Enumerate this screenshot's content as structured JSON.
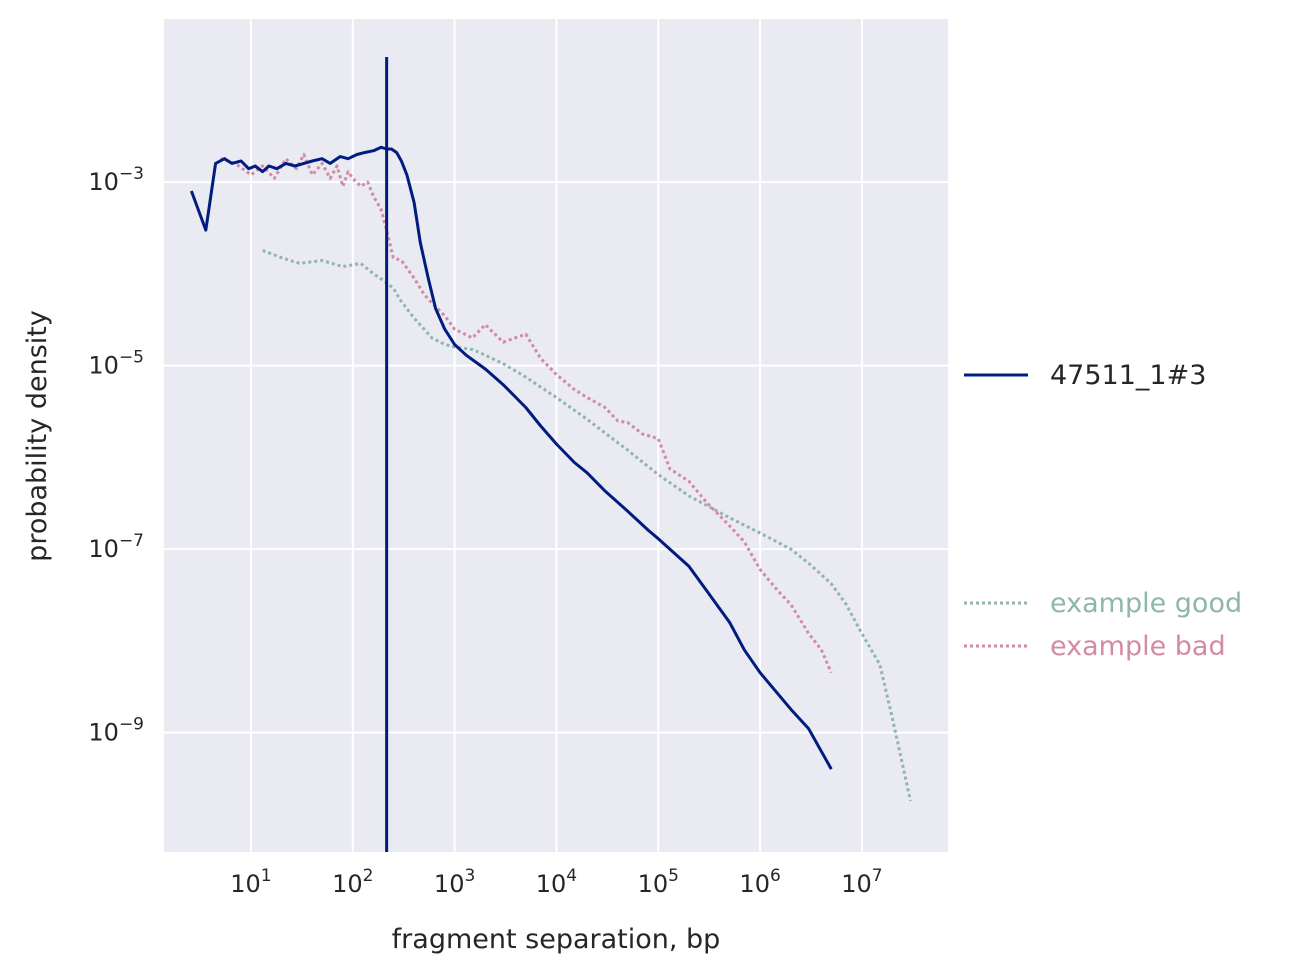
{
  "chart_data": {
    "type": "line",
    "title": "",
    "xlabel": "fragment separation, bp",
    "ylabel": "probability density",
    "x_scale": "log",
    "y_scale": "log",
    "xlim": [
      1.4,
      70000000
    ],
    "ylim": [
      5e-11,
      0.06
    ],
    "x_ticks": [
      {
        "value": 10,
        "base": "10",
        "exp": "1"
      },
      {
        "value": 100,
        "base": "10",
        "exp": "2"
      },
      {
        "value": 1000,
        "base": "10",
        "exp": "3"
      },
      {
        "value": 10000,
        "base": "10",
        "exp": "4"
      },
      {
        "value": 100000,
        "base": "10",
        "exp": "5"
      },
      {
        "value": 1000000,
        "base": "10",
        "exp": "6"
      },
      {
        "value": 10000000,
        "base": "10",
        "exp": "7"
      }
    ],
    "y_ticks": [
      {
        "value": 0.001,
        "base": "10",
        "exp": "−3"
      },
      {
        "value": 1e-05,
        "base": "10",
        "exp": "−5"
      },
      {
        "value": 1e-07,
        "base": "10",
        "exp": "−7"
      },
      {
        "value": 1e-09,
        "base": "10",
        "exp": "−9"
      }
    ],
    "grid": true,
    "legend_position": "right",
    "colors": {
      "background": "#eaeaf2",
      "grid": "#ffffff",
      "sample": "#001c7f",
      "good": "#8fb6ae",
      "bad": "#d38aa6",
      "text": "#262626"
    },
    "vertical_line": {
      "x": 215,
      "color": "#001c7f"
    },
    "legend": [
      {
        "name": "47511_1#3",
        "style": "solid",
        "color": "#001c7f"
      },
      {
        "name": "example good",
        "style": "dotted",
        "color": "#8fb6ae"
      },
      {
        "name": "example bad",
        "style": "dotted",
        "color": "#d38aa6"
      }
    ],
    "series": [
      {
        "name": "47511_1#3",
        "style": "solid",
        "color": "#001c7f",
        "x": [
          2.6,
          3.6,
          4.5,
          5.5,
          6.5,
          8,
          9.5,
          11,
          13,
          15,
          18,
          22,
          27,
          33,
          40,
          50,
          60,
          75,
          90,
          110,
          130,
          160,
          190,
          215,
          240,
          270,
          300,
          340,
          400,
          460,
          550,
          650,
          800,
          1000,
          1300,
          2000,
          3000,
          5000,
          7000,
          10000,
          15000,
          20000,
          30000,
          50000,
          80000,
          100000,
          200000,
          300000,
          500000,
          700000,
          1000000,
          2000000,
          3000000,
          5000000
        ],
        "y": [
          0.0008,
          0.0003,
          0.0016,
          0.0018,
          0.0016,
          0.0017,
          0.0014,
          0.0015,
          0.0013,
          0.0015,
          0.0014,
          0.0016,
          0.0015,
          0.0016,
          0.0017,
          0.0018,
          0.0016,
          0.0019,
          0.0018,
          0.002,
          0.0021,
          0.0022,
          0.0024,
          0.0023,
          0.0023,
          0.0021,
          0.0017,
          0.0012,
          0.0006,
          0.00022,
          9e-05,
          4.2e-05,
          2.5e-05,
          1.7e-05,
          1.3e-05,
          9.2e-06,
          6.2e-06,
          3.5e-06,
          2.2e-06,
          1.4e-06,
          8.8e-07,
          6.8e-07,
          4.3e-07,
          2.6e-07,
          1.6e-07,
          1.3e-07,
          6.5e-08,
          3.5e-08,
          1.6e-08,
          8e-09,
          4.5e-09,
          1.8e-09,
          1.1e-09,
          4e-10
        ]
      },
      {
        "name": "example good",
        "style": "dotted",
        "color": "#8fb6ae",
        "x": [
          13,
          20,
          30,
          50,
          80,
          120,
          160,
          200,
          250,
          300,
          400,
          500,
          600,
          800,
          1000,
          1500,
          2000,
          3000,
          5000,
          10000,
          20000,
          50000,
          100000,
          200000,
          500000,
          1000000,
          2000000,
          3000000,
          5000000,
          7000000,
          10000000,
          15000000,
          20000000,
          30000000
        ],
        "y": [
          0.00018,
          0.00015,
          0.00013,
          0.00014,
          0.00012,
          0.00013,
          0.0001,
          8.5e-05,
          7e-05,
          5e-05,
          3.3e-05,
          2.5e-05,
          2e-05,
          1.7e-05,
          1.6e-05,
          1.5e-05,
          1.3e-05,
          1.05e-05,
          7.5e-06,
          4.5e-06,
          2.6e-06,
          1.2e-06,
          6.5e-07,
          3.8e-07,
          2.2e-07,
          1.5e-07,
          1e-07,
          7e-08,
          4.2e-08,
          2.5e-08,
          1.2e-08,
          5.5e-09,
          1.4e-09,
          1.8e-10
        ]
      },
      {
        "name": "example bad",
        "style": "dotted",
        "color": "#d38aa6",
        "x": [
          5,
          7,
          10,
          13,
          17,
          22,
          28,
          33,
          40,
          50,
          60,
          70,
          80,
          90,
          100,
          120,
          140,
          160,
          190,
          215,
          250,
          300,
          400,
          500,
          600,
          800,
          1000,
          1500,
          2000,
          3000,
          5000,
          7000,
          10000,
          15000,
          20000,
          30000,
          40000,
          50000,
          70000,
          100000,
          130000,
          200000,
          300000,
          500000,
          700000,
          1000000,
          1500000,
          2000000,
          3000000,
          4000000,
          5000000
        ],
        "y": [
          0.0018,
          0.0016,
          0.0012,
          0.0015,
          0.0011,
          0.0018,
          0.0014,
          0.002,
          0.0012,
          0.0016,
          0.0011,
          0.0015,
          0.0009,
          0.0013,
          0.0011,
          0.0009,
          0.001,
          0.0007,
          0.0005,
          0.0003,
          0.00015,
          0.00014,
          9e-05,
          6e-05,
          4.8e-05,
          3.5e-05,
          2.5e-05,
          2e-05,
          2.8e-05,
          1.8e-05,
          2.2e-05,
          1.2e-05,
          8e-06,
          5.5e-06,
          4.5e-06,
          3.5e-06,
          2.5e-06,
          2.4e-06,
          1.8e-06,
          1.6e-06,
          7.5e-07,
          5.5e-07,
          3.2e-07,
          1.8e-07,
          1.2e-07,
          6e-08,
          3.5e-08,
          2.5e-08,
          1.2e-08,
          8e-09,
          4.5e-09
        ]
      }
    ]
  }
}
